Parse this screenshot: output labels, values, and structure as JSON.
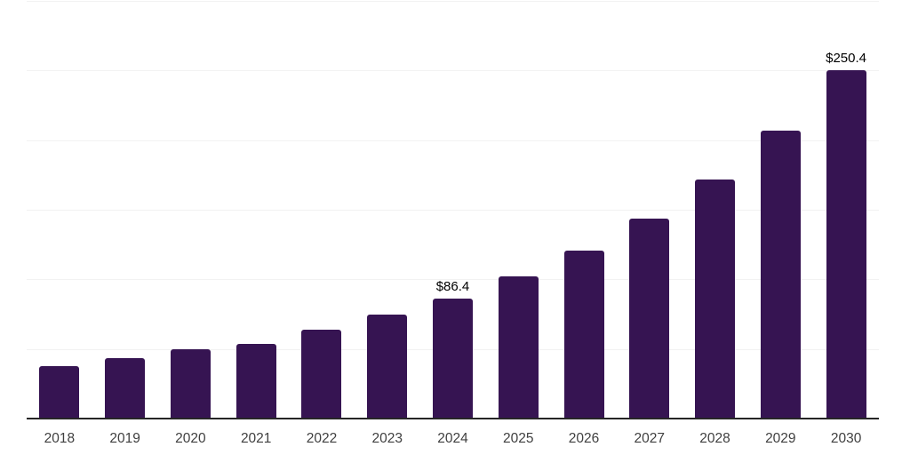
{
  "chart_data": {
    "type": "bar",
    "categories": [
      "2018",
      "2019",
      "2020",
      "2021",
      "2022",
      "2023",
      "2024",
      "2025",
      "2026",
      "2027",
      "2028",
      "2029",
      "2030"
    ],
    "values": [
      37.6,
      43.2,
      49.6,
      53.6,
      63.8,
      74.5,
      86.4,
      102.1,
      120.6,
      143.6,
      171.7,
      206.8,
      250.4
    ],
    "data_labels": [
      {
        "category": "2024",
        "text": "$86.4"
      },
      {
        "category": "2030",
        "text": "$250.4"
      }
    ],
    "ylim": [
      0,
      300
    ],
    "gridline_step": 50,
    "grid": true,
    "legend": false,
    "colors": {
      "bar": "#361452",
      "gridline": "#f2f2f2",
      "axis_line": "#262626",
      "tick_label": "#404040",
      "data_label": "#000000",
      "background": "#ffffff"
    }
  }
}
